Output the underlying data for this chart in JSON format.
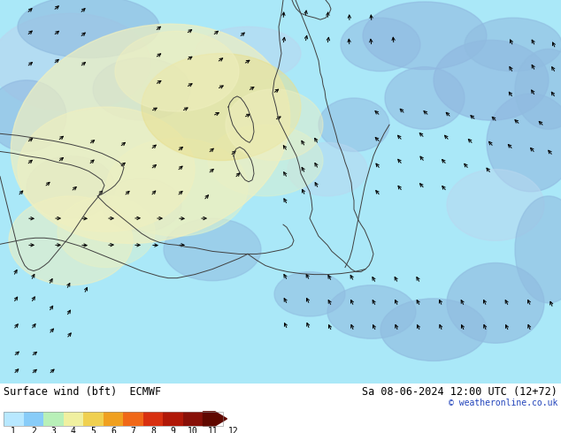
{
  "title": "Surface wind (bft)  ECMWF",
  "date_label": "Sa 08-06-2024 12:00 UTC (12+72)",
  "copyright": "© weatheronline.co.uk",
  "colorbar_colors": [
    "#b8e8ff",
    "#88ccf8",
    "#b8f0b8",
    "#f0f0a0",
    "#f0d050",
    "#f0a020",
    "#f06818",
    "#d83010",
    "#b01808",
    "#881008",
    "#600800"
  ],
  "colorbar_labels": [
    "1",
    "2",
    "3",
    "4",
    "5",
    "6",
    "7",
    "8",
    "9",
    "10",
    "11",
    "12"
  ],
  "bg_color": "#ffffff",
  "map_colors": {
    "sea_light": "#aae8f8",
    "sea_medium": "#88c8e8",
    "land_blue_light": "#b8d8f0",
    "land_blue_med": "#90b8e0",
    "land_green_light": "#d8f0d0",
    "land_yellow_light": "#f0f0c0",
    "land_yellow": "#e8e090",
    "land_border": "#404040"
  },
  "label_fontsize": 8.5,
  "copyright_color": "#2244bb"
}
